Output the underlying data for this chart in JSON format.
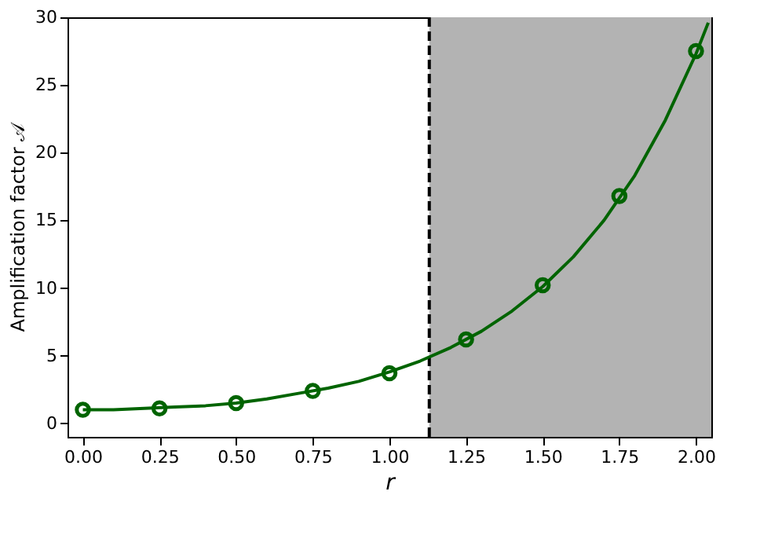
{
  "chart_data": {
    "type": "line",
    "xlabel": "r",
    "ylabel": "Amplification factor 𝒜",
    "xlim": [
      -0.05,
      2.05
    ],
    "ylim": [
      -1,
      30
    ],
    "xticks": [
      {
        "value": 0,
        "label": "0.00"
      },
      {
        "value": 0.25,
        "label": "0.25"
      },
      {
        "value": 0.5,
        "label": "0.50"
      },
      {
        "value": 0.75,
        "label": "0.75"
      },
      {
        "value": 1,
        "label": "1.00"
      },
      {
        "value": 1.25,
        "label": "1.25"
      },
      {
        "value": 1.5,
        "label": "1.50"
      },
      {
        "value": 1.75,
        "label": "1.75"
      },
      {
        "value": 2,
        "label": "2.00"
      }
    ],
    "yticks": [
      0,
      5,
      10,
      15,
      20,
      25,
      30
    ],
    "grid": false,
    "series": [
      {
        "type": "line",
        "color": "#006400",
        "marker": "none",
        "line_style": "solid",
        "x": [
          0,
          0.1,
          0.2,
          0.3,
          0.4,
          0.5,
          0.6,
          0.7,
          0.8,
          0.9,
          1.0,
          1.1,
          1.2,
          1.3,
          1.4,
          1.5,
          1.6,
          1.7,
          1.8,
          1.9,
          2.0,
          2.04
        ],
        "values": [
          1.0,
          1.0,
          1.1,
          1.2,
          1.3,
          1.5,
          1.8,
          2.2,
          2.6,
          3.1,
          3.8,
          4.6,
          5.6,
          6.8,
          8.3,
          10.1,
          12.3,
          15.0,
          18.3,
          22.4,
          27.3,
          29.6
        ]
      },
      {
        "type": "scatter",
        "color": "#006400",
        "marker": "circle",
        "x": [
          0,
          0.25,
          0.5,
          0.75,
          1.0,
          1.25,
          1.5,
          1.75,
          2.0
        ],
        "values": [
          1.0,
          1.1,
          1.5,
          2.4,
          3.7,
          6.2,
          10.2,
          16.8,
          27.5
        ]
      }
    ],
    "bands": [
      {
        "axis": "x",
        "from": 1.13,
        "to": 2.05,
        "color": "#b3b3b3"
      }
    ],
    "ref_lines": [
      {
        "axis": "x",
        "value": 1.13,
        "color": "#000000",
        "line_style": "dashed"
      }
    ]
  }
}
